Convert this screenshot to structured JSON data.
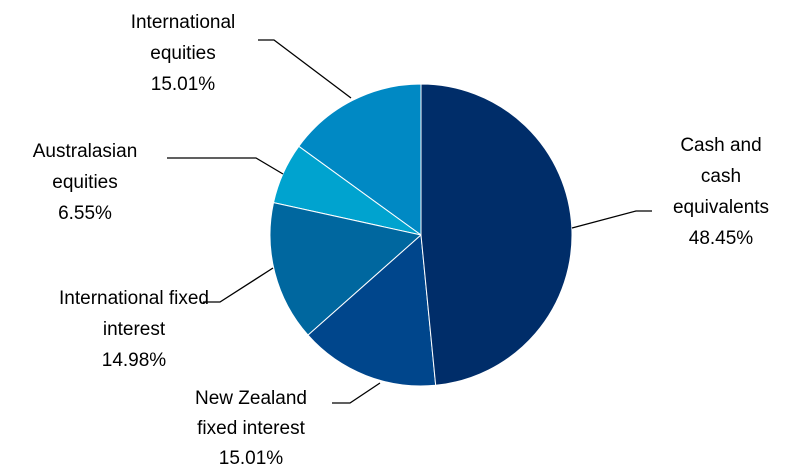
{
  "chart_data": {
    "type": "pie",
    "categories": [
      "Cash and cash equivalents",
      "New Zealand fixed interest",
      "International fixed interest",
      "Australasian equities",
      "International equities"
    ],
    "values": [
      48.45,
      15.01,
      14.98,
      6.55,
      15.01
    ],
    "value_labels": [
      "48.45%",
      "15.01%",
      "14.98%",
      "6.55%",
      "15.01%"
    ],
    "colors": [
      "#002d69",
      "#00468c",
      "#00679f",
      "#00a3cf",
      "#0089c4"
    ]
  }
}
